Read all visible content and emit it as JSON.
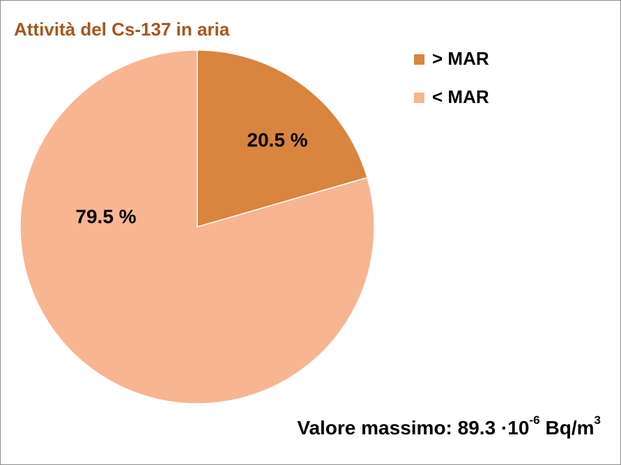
{
  "chart_data": {
    "type": "pie",
    "title": "Attività del Cs-137 in aria",
    "categories": [
      "> MAR",
      "< MAR"
    ],
    "values": [
      20.5,
      79.5
    ],
    "value_labels": [
      "20.5 %",
      "79.5 %"
    ],
    "colors": [
      "#d9843f",
      "#f7b592"
    ],
    "legend": "top-right",
    "annotation": {
      "text": "Valore massimo: 89.3 ·10",
      "exponent": "-6",
      "unit": "Bq/m",
      "unit_exponent": "3"
    }
  }
}
